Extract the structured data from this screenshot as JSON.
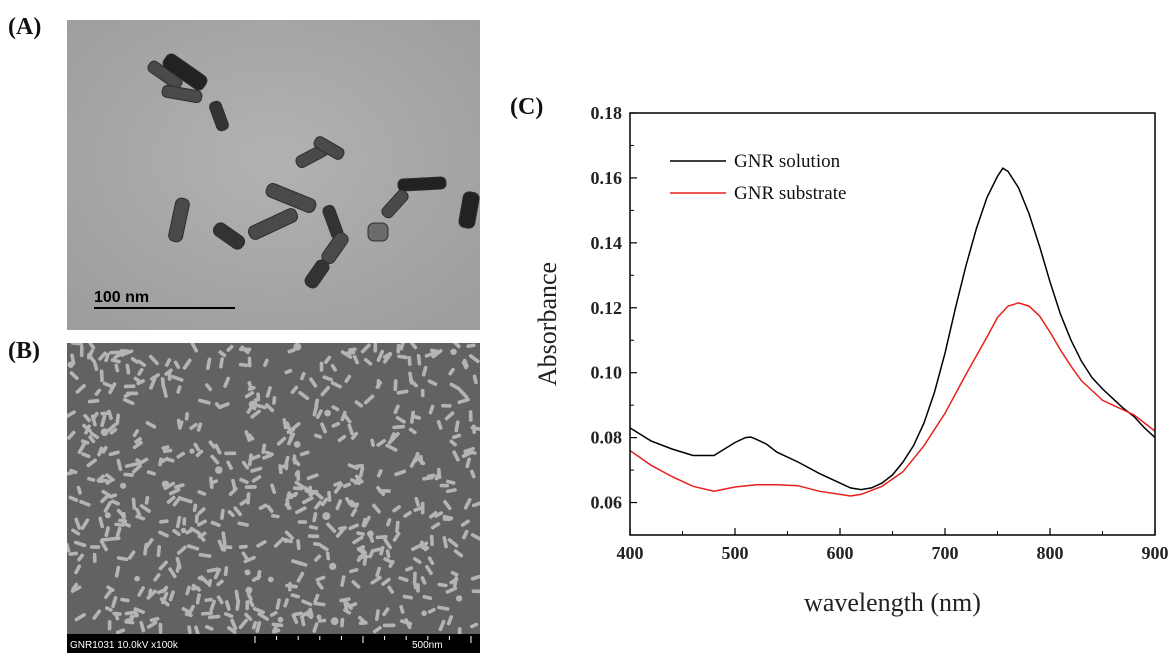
{
  "panels": {
    "a_label": "(A)",
    "b_label": "(B)",
    "c_label": "(C)"
  },
  "tem": {
    "scale_bar_text": "100 nm"
  },
  "sem": {
    "info_left": "GNR1031 10.0kV x100k",
    "info_right": "500nm"
  },
  "colors": {
    "tem_background": "#a9a9a9",
    "sem_background": "#626262",
    "series_black": "#000000",
    "series_red": "#e8201c"
  },
  "chart_data": {
    "type": "line",
    "title": "",
    "xlabel": "wavelength (nm)",
    "ylabel": "Absorbance",
    "xlim": [
      400,
      900
    ],
    "ylim": [
      0.05,
      0.18
    ],
    "xticks": [
      400,
      500,
      600,
      700,
      800,
      900
    ],
    "yticks": [
      0.06,
      0.08,
      0.1,
      0.12,
      0.14,
      0.16,
      0.18
    ],
    "ytick_labels": [
      "0.06",
      "0.08",
      "0.10",
      "0.12",
      "0.14",
      "0.16",
      "0.18"
    ],
    "legend_position": "top-left",
    "grid": false,
    "series": [
      {
        "name": "GNR solution",
        "color": "#000000",
        "x": [
          400,
          420,
          440,
          460,
          480,
          490,
          500,
          510,
          515,
          520,
          530,
          540,
          560,
          580,
          600,
          610,
          620,
          630,
          640,
          650,
          660,
          670,
          680,
          690,
          700,
          710,
          720,
          730,
          740,
          750,
          755,
          760,
          770,
          780,
          790,
          800,
          810,
          820,
          830,
          840,
          850,
          860,
          870,
          880,
          890,
          900
        ],
        "y": [
          0.083,
          0.079,
          0.0765,
          0.0745,
          0.0745,
          0.0765,
          0.0785,
          0.08,
          0.0802,
          0.0795,
          0.078,
          0.0755,
          0.0725,
          0.069,
          0.066,
          0.0645,
          0.064,
          0.0645,
          0.066,
          0.0685,
          0.0725,
          0.0775,
          0.0845,
          0.094,
          0.106,
          0.12,
          0.133,
          0.1445,
          0.154,
          0.1605,
          0.163,
          0.162,
          0.157,
          0.149,
          0.139,
          0.128,
          0.118,
          0.11,
          0.1035,
          0.0985,
          0.095,
          0.092,
          0.089,
          0.0865,
          0.083,
          0.08
        ]
      },
      {
        "name": "GNR substrate",
        "color": "#e8201c",
        "x": [
          400,
          420,
          440,
          460,
          480,
          500,
          520,
          540,
          560,
          580,
          600,
          610,
          620,
          640,
          660,
          680,
          700,
          720,
          740,
          750,
          760,
          770,
          780,
          790,
          800,
          810,
          820,
          830,
          840,
          850,
          860,
          870,
          880,
          890,
          900
        ],
        "y": [
          0.076,
          0.0715,
          0.068,
          0.065,
          0.0635,
          0.0648,
          0.0655,
          0.0655,
          0.0652,
          0.0635,
          0.0625,
          0.062,
          0.0625,
          0.065,
          0.0695,
          0.0775,
          0.0875,
          0.0995,
          0.111,
          0.117,
          0.1205,
          0.1215,
          0.1205,
          0.1175,
          0.1125,
          0.107,
          0.102,
          0.0975,
          0.0945,
          0.0915,
          0.09,
          0.0885,
          0.087,
          0.0845,
          0.082
        ]
      }
    ]
  }
}
